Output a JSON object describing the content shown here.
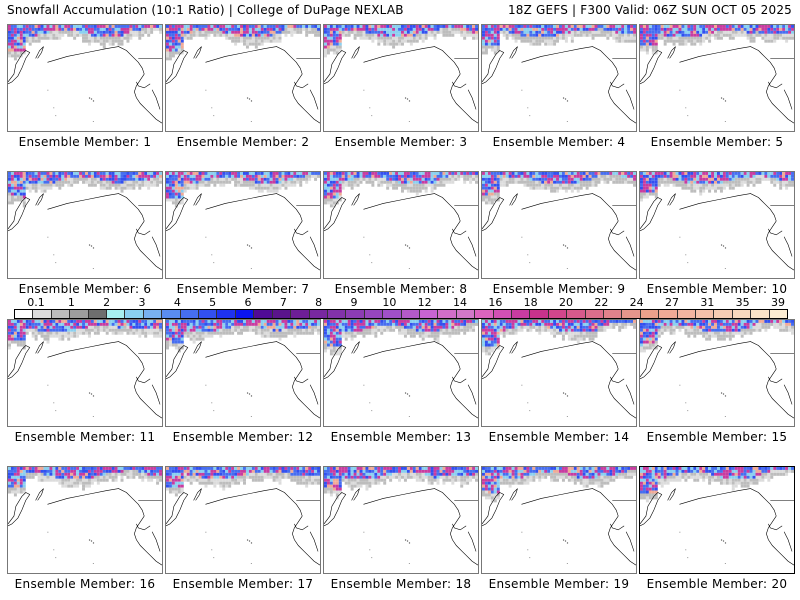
{
  "header": {
    "title": "Snowfall Accumulation (10:1 Ratio) | College of DuPage NEXLAB",
    "run_info": "18Z GEFS | F300 Valid: 06Z SUN OCT 05 2025"
  },
  "colorbar": {
    "units_note": "",
    "tick_labels": [
      "0.1",
      "1",
      "2",
      "3",
      "4",
      "5",
      "6",
      "7",
      "8",
      "9",
      "10",
      "12",
      "14",
      "16",
      "18",
      "20",
      "22",
      "24",
      "27",
      "31",
      "35",
      "39"
    ],
    "colors": [
      "#ffffff",
      "#dcdcdc",
      "#bdbdbd",
      "#9e9e9e",
      "#6e6e6e",
      "#a8f0f0",
      "#8ad0f0",
      "#78b0f0",
      "#5a8cf0",
      "#466ef0",
      "#3250f0",
      "#1e32f0",
      "#0a14f0",
      "#500a96",
      "#5a148c",
      "#6e1e96",
      "#7828a0",
      "#8232aa",
      "#8c3cb4",
      "#9646be",
      "#a050c8",
      "#b45ac8",
      "#c864d2",
      "#d26ec8",
      "#d278c8",
      "#dc64be",
      "#d250b4",
      "#c83ca0",
      "#c8328c",
      "#d2468c",
      "#d75a8c",
      "#dc6e8c",
      "#e1828c",
      "#e6968c",
      "#eba08c",
      "#f0aa96",
      "#f2b4a0",
      "#f4c0aa",
      "#f6ccb4",
      "#f8d8be",
      "#fae4c8",
      "#fcecd2"
    ],
    "tick_positions_note": ""
  },
  "panels": [
    {
      "label": "Ensemble Member: 1",
      "member": 1,
      "selected": false
    },
    {
      "label": "Ensemble Member: 2",
      "member": 2,
      "selected": false
    },
    {
      "label": "Ensemble Member: 3",
      "member": 3,
      "selected": false
    },
    {
      "label": "Ensemble Member: 4",
      "member": 4,
      "selected": false
    },
    {
      "label": "Ensemble Member: 5",
      "member": 5,
      "selected": false
    },
    {
      "label": "Ensemble Member: 6",
      "member": 6,
      "selected": false
    },
    {
      "label": "Ensemble Member: 7",
      "member": 7,
      "selected": false
    },
    {
      "label": "Ensemble Member: 8",
      "member": 8,
      "selected": false
    },
    {
      "label": "Ensemble Member: 9",
      "member": 9,
      "selected": false
    },
    {
      "label": "Ensemble Member: 10",
      "member": 10,
      "selected": false
    },
    {
      "label": "Ensemble Member: 11",
      "member": 11,
      "selected": false
    },
    {
      "label": "Ensemble Member: 12",
      "member": 12,
      "selected": false
    },
    {
      "label": "Ensemble Member: 13",
      "member": 13,
      "selected": false
    },
    {
      "label": "Ensemble Member: 14",
      "member": 14,
      "selected": false
    },
    {
      "label": "Ensemble Member: 15",
      "member": 15,
      "selected": false
    },
    {
      "label": "Ensemble Member: 16",
      "member": 16,
      "selected": false
    },
    {
      "label": "Ensemble Member: 17",
      "member": 17,
      "selected": false
    },
    {
      "label": "Ensemble Member: 18",
      "member": 18,
      "selected": false
    },
    {
      "label": "Ensemble Member: 19",
      "member": 19,
      "selected": false
    },
    {
      "label": "Ensemble Member: 20",
      "member": 20,
      "selected": true
    }
  ],
  "map_legend_colors": {
    "light_snow": "#bdbdbd",
    "moderate_snow": "#466ef0",
    "heavy_snow": "#c83ca0",
    "extreme_snow": "#f0aa96",
    "coastline": "#000000"
  }
}
